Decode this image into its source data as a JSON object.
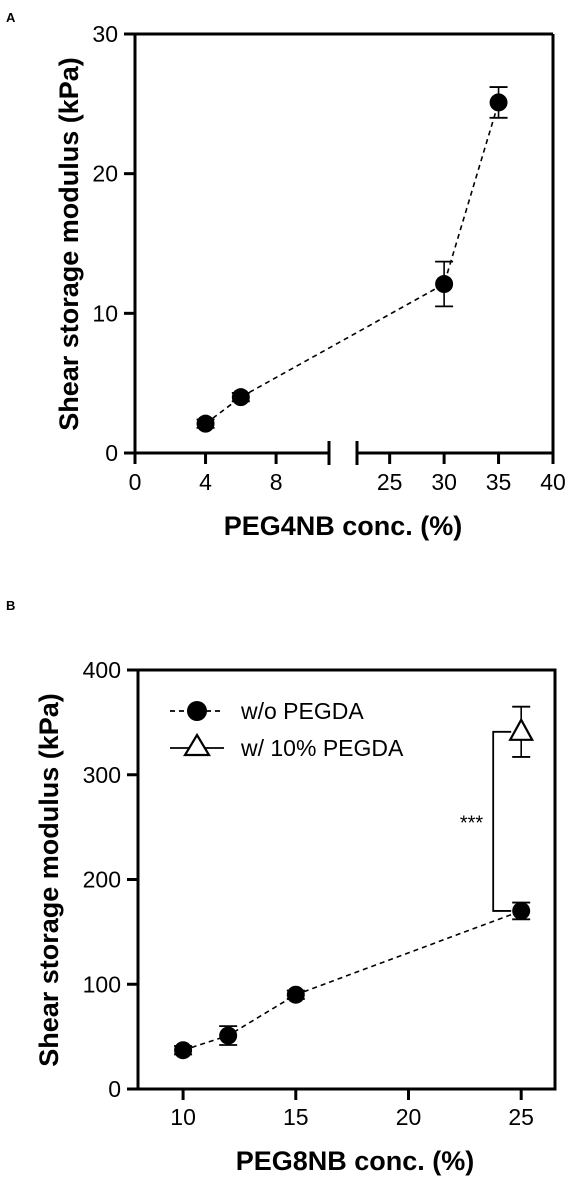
{
  "chart_data": [
    {
      "type": "scatter",
      "panel_label": "A",
      "xlabel": "PEG4NB conc. (%)",
      "ylabel": "Shear storage modulus (kPa)",
      "ylim": [
        0,
        30
      ],
      "yticks": [
        "0",
        "10",
        "20",
        "30"
      ],
      "x_segments": [
        {
          "range": [
            0,
            11
          ],
          "ticks": [
            0,
            4,
            8
          ],
          "tick_labels": [
            "0",
            "4",
            "8"
          ]
        },
        {
          "range": [
            22,
            40
          ],
          "ticks": [
            25,
            30,
            35,
            40
          ],
          "tick_labels": [
            "25",
            "30",
            "35",
            "40"
          ]
        }
      ],
      "axis_break": true,
      "line_style": "dashed",
      "series": [
        {
          "marker": "filled-circle",
          "points": [
            {
              "x": 4,
              "y": 2.1,
              "err": 0.3
            },
            {
              "x": 6,
              "y": 4.0,
              "err": 0.3
            },
            {
              "x": 30,
              "y": 12.1,
              "err": 1.6
            },
            {
              "x": 35,
              "y": 25.1,
              "err": 1.1
            }
          ]
        }
      ]
    },
    {
      "type": "scatter",
      "panel_label": "B",
      "xlabel": "PEG8NB conc. (%)",
      "ylabel": "Shear storage modulus (kPa)",
      "xlim": [
        8,
        26.5
      ],
      "xticks": [
        "10",
        "15",
        "20",
        "25"
      ],
      "ylim": [
        0,
        400
      ],
      "yticks": [
        "0",
        "100",
        "200",
        "300",
        "400"
      ],
      "legend_position": "top-left",
      "series": [
        {
          "name": "w/o PEGDA",
          "marker": "filled-circle",
          "line_style": "dashed",
          "points": [
            {
              "x": 10,
              "y": 37,
              "err": 4
            },
            {
              "x": 12,
              "y": 51,
              "err": 9
            },
            {
              "x": 15,
              "y": 90,
              "err": 4
            },
            {
              "x": 25,
              "y": 170,
              "err": 8
            }
          ]
        },
        {
          "name": "w/ 10% PEGDA",
          "marker": "open-triangle",
          "points": [
            {
              "x": 25,
              "y": 341,
              "err": 24
            }
          ]
        }
      ],
      "annotations": [
        {
          "text": "***",
          "between_y": [
            170,
            341
          ],
          "at_x": 25
        }
      ]
    }
  ]
}
